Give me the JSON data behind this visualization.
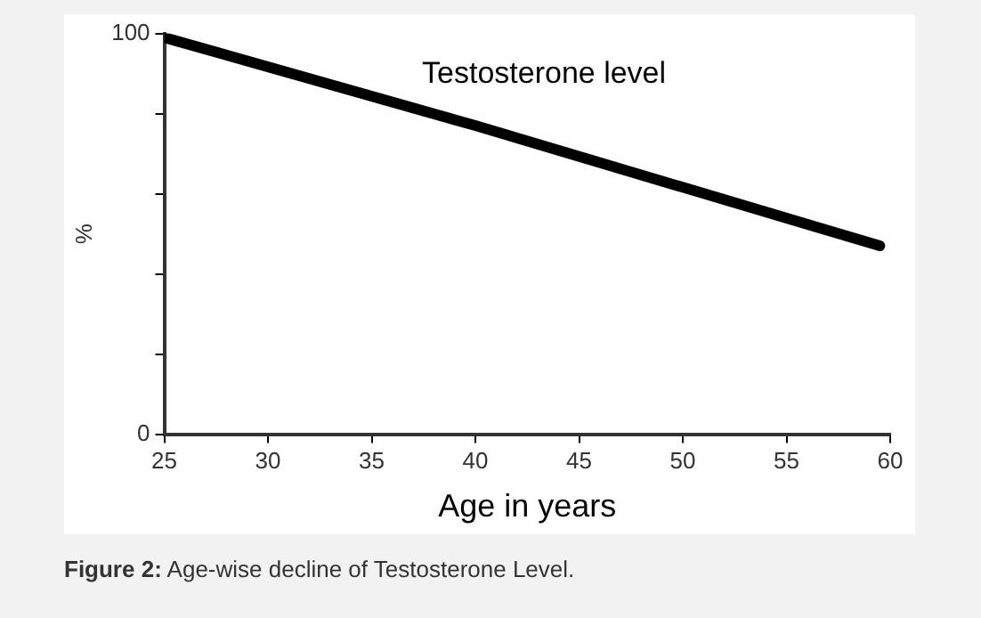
{
  "chart_data": {
    "type": "line",
    "xlabel": "Age in years",
    "ylabel": "%",
    "x": [
      25,
      40,
      59.5
    ],
    "series": [
      {
        "name": "Testosterone level",
        "color": "#000000",
        "values": [
          99,
          77,
          47
        ]
      }
    ],
    "xlim": [
      25,
      60
    ],
    "xticks": [
      25,
      30,
      35,
      40,
      45,
      50,
      55,
      60
    ],
    "ylim": [
      0,
      100
    ],
    "yticks": [
      0,
      {
        "value": 20,
        "label": null
      },
      {
        "value": 40,
        "label": null
      },
      {
        "value": 60,
        "label": null
      },
      {
        "value": 80,
        "label": null
      },
      100
    ],
    "grid": false,
    "legend": false,
    "marker": "none",
    "line_style": "solid",
    "annotations": [
      "Figure 2: Age-wise decline of Testosterone Level."
    ]
  }
}
